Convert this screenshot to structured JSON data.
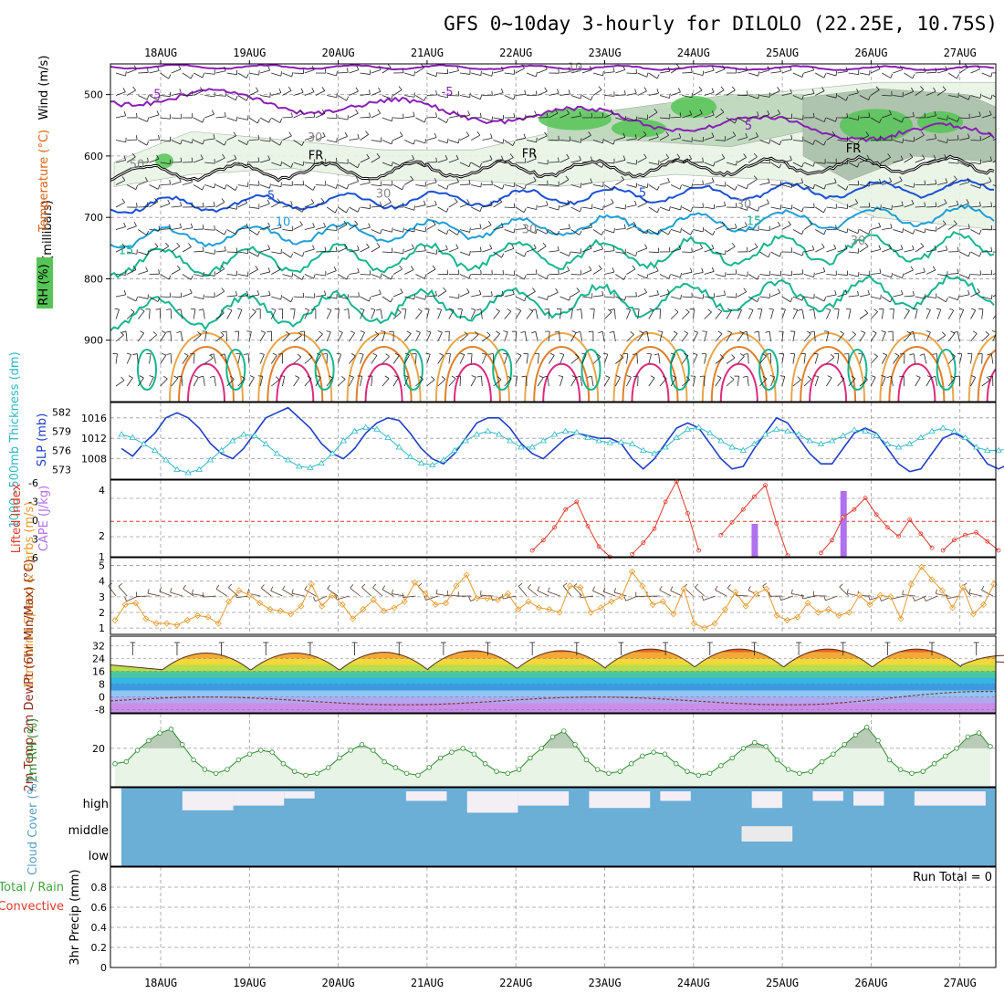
{
  "chart_data": {
    "title": "GFS 0~10day 3-hourly for DILOLO (22.25E, 10.75S)",
    "date_labels": [
      "18AUG",
      "19AUG",
      "20AUG",
      "21AUG",
      "22AUG",
      "23AUG",
      "24AUG",
      "25AUG",
      "26AUG",
      "27AUG"
    ],
    "panels": [
      {
        "type": "contour",
        "name": "upper_air",
        "ylabel": "(millibars)",
        "yticks": [
          500,
          600,
          700,
          800,
          900
        ],
        "ylim": [
          1000,
          450
        ],
        "legend": [
          "Wind (m/s)",
          "Temperature (°C)",
          "RH (%)"
        ],
        "contour_labels": [
          "-5",
          "-5",
          "5",
          "5",
          "5",
          "10",
          "15",
          "15",
          "FR",
          "FR",
          "FR",
          "30",
          "30",
          "30",
          "30",
          "30",
          "50",
          "10"
        ]
      },
      {
        "type": "line",
        "name": "slp_thickness",
        "ylabel_left": "1000~500mb Thickness (dm)",
        "ylabel_right": "SLP (mb)",
        "ticks_thickness": [
          573,
          576,
          579,
          582
        ],
        "ticks_slp": [
          1008,
          1012,
          1016
        ],
        "series": [
          {
            "name": "SLP (mb)",
            "color": "#1f3fc8",
            "values": [
              1010,
              1008.5,
              1011,
              1013,
              1016,
              1017,
              1016,
              1014,
              1011,
              1009,
              1008,
              1010,
              1013,
              1016,
              1017,
              1018,
              1016,
              1014,
              1011,
              1009,
              1008,
              1010,
              1013,
              1015,
              1016,
              1015.5,
              1013,
              1010,
              1008,
              1007,
              1009,
              1012,
              1015,
              1016,
              1016,
              1014,
              1011,
              1009,
              1008,
              1010,
              1012,
              1013,
              1012.5,
              1012,
              1012,
              1011,
              1008,
              1006,
              1008,
              1011,
              1014,
              1015,
              1014,
              1011,
              1008,
              1006,
              1006.5,
              1010,
              1013,
              1016,
              1015,
              1012,
              1009,
              1007,
              1007,
              1010,
              1013,
              1014,
              1013,
              1010,
              1007,
              1005.5,
              1006,
              1009,
              1012,
              1013,
              1012,
              1010,
              1007,
              1006,
              1007,
              1010,
              1012,
              1012,
              1011,
              1009,
              1007,
              1007,
              1009,
              1011,
              1013,
              1012,
              1010,
              1008,
              1007,
              1009,
              1011,
              1013,
              1015
            ]
          },
          {
            "name": "1000~500mb Thickness (dm)",
            "color": "#2fb8c6",
            "values": [
              578.5,
              578,
              577,
              576,
              574.5,
              573,
              572.5,
              573,
              574.5,
              576,
              577.5,
              578.5,
              578.3,
              577,
              575.5,
              574.5,
              573.5,
              573.3,
              574,
              575.5,
              577.5,
              579,
              579.6,
              579.3,
              578,
              576.5,
              575,
              574,
              573.7,
              574.5,
              576,
              577.5,
              578.5,
              579,
              578.5,
              577.5,
              576.5,
              576.5,
              577.5,
              578.5,
              579,
              578.8,
              578,
              577.5,
              577.2,
              577.3,
              577,
              576,
              575.5,
              576.5,
              578,
              579.3,
              579.6,
              578.7,
              577.5,
              576.5,
              576,
              577,
              578.5,
              579.3,
              579,
              578.5,
              577.5,
              577,
              577.5,
              578.3,
              579.2,
              579,
              578.3,
              577,
              576.5,
              577,
              578,
              579,
              579.5,
              579,
              578,
              576.5,
              576,
              576,
              576.3,
              577.5,
              579,
              580.5,
              581.5,
              582,
              581.5,
              580,
              578.5,
              578,
              578.5,
              580,
              581.2,
              581.5,
              580.5,
              579.5,
              578.5,
              577.5,
              577,
              578
            ]
          }
        ]
      },
      {
        "type": "bar+line",
        "name": "stability",
        "ylabel_left": "Lifted Index",
        "ylabel_right": "CAPE (J/kg)",
        "ticks_li": [
          "-6",
          "-3",
          "0",
          "3",
          "6"
        ],
        "ticks_cape": [
          "4",
          "2",
          "1"
        ],
        "cape_bars": [
          {
            "step": 58,
            "value": 2
          },
          {
            "step": 66,
            "value": 4
          }
        ],
        "li_segments": [
          {
            "start": 38,
            "values": [
              5.5,
              4.7,
              3.7,
              2.3,
              1.7,
              3.6,
              5.2,
              6
            ]
          },
          {
            "start": 47,
            "values": [
              5.8,
              4.9,
              3.8,
              1.7,
              0.1,
              2.6,
              5.5
            ]
          },
          {
            "start": 55,
            "values": [
              4.3,
              3.3,
              2.3,
              1.3,
              0.4,
              3.4,
              5.9
            ]
          },
          {
            "start": 64,
            "values": [
              5.7,
              4.7,
              2.9,
              2.3,
              1.4,
              2.7,
              3.7,
              4.4,
              3.1,
              4.2,
              5.3
            ]
          },
          {
            "start": 75,
            "values": [
              5.5,
              4.7,
              4.3,
              4.1,
              4.8,
              5.5
            ]
          }
        ]
      },
      {
        "type": "line",
        "name": "wind10m",
        "ylabel": "10m Wind Speed & Barbs (m/s)",
        "yticks": [
          1,
          2,
          3,
          4,
          5
        ],
        "series": [
          {
            "name": "10m Wind Speed",
            "color": "#e79a2e",
            "values": [
              1.5,
              2.5,
              2.6,
              1.6,
              1.3,
              1.3,
              1.2,
              1.5,
              1.8,
              1.7,
              1.3,
              2.7,
              3.4,
              3.1,
              2.6,
              2.2,
              2.1,
              1.9,
              2.4,
              3.8,
              2.4,
              3.1,
              2.5,
              1.6,
              2.2,
              2.8,
              2.1,
              2.3,
              2.7,
              3.9,
              3.2,
              2.5,
              2.6,
              3.7,
              4.4,
              2.9,
              2.9,
              2.8,
              3.2,
              2.2,
              2.7,
              2.3,
              2.2,
              2.0,
              3.7,
              3.6,
              2.0,
              2.3,
              2.7,
              3.0,
              4.6,
              3.7,
              2.5,
              2.7,
              1.9,
              3.5,
              1.3,
              1.0,
              1.3,
              2.2,
              3.3,
              2.4,
              3.2,
              3.5,
              1.8,
              1.5,
              1.7,
              2.6,
              2.0,
              2.2,
              1.8,
              2.0,
              3.1,
              2.5,
              3.1,
              3.0,
              1.6,
              3.8,
              4.9,
              4.1,
              3.4,
              2.3,
              3.6,
              1.9,
              2.5,
              3.8
            ]
          }
        ]
      },
      {
        "type": "area+line",
        "name": "temp2m",
        "ylabel": "2m Temp 2m DewPt (6hr Min/Max) (°C)",
        "yticks": [
          -8,
          0,
          8,
          16,
          24,
          32
        ],
        "temp_daily": [
          {
            "min": 17,
            "max": 31
          },
          {
            "min": 17,
            "max": 31
          },
          {
            "min": 17,
            "max": 32
          },
          {
            "min": 18,
            "max": 33
          },
          {
            "min": 18,
            "max": 33
          },
          {
            "min": 19,
            "max": 34
          },
          {
            "min": 19,
            "max": 34
          },
          {
            "min": 19,
            "max": 34
          },
          {
            "min": 19,
            "max": 34
          },
          {
            "min": 20,
            "max": 25
          }
        ],
        "dewpoint_range": [
          -5,
          2
        ]
      },
      {
        "type": "line",
        "name": "rh2m",
        "ylabel": "2m RH (%)",
        "yticks": [
          20
        ],
        "series": [
          {
            "name": "2m RH",
            "color": "#2e8b2e",
            "values": [
              12,
              13,
              19,
              24,
              28,
              30,
              22,
              14,
              9,
              7,
              9,
              14,
              17,
              19,
              18,
              12,
              8,
              6,
              7,
              10,
              15,
              19,
              22,
              19,
              13,
              10,
              7,
              6,
              10,
              15,
              18,
              20,
              17,
              12,
              8,
              7,
              9,
              15,
              20,
              26,
              29,
              22,
              14,
              9,
              7,
              8,
              12,
              16,
              18,
              17,
              12,
              8,
              6,
              7,
              11,
              15,
              20,
              23,
              21,
              14,
              9,
              7,
              8,
              13,
              17,
              22,
              27,
              31,
              24,
              14,
              9,
              7,
              8,
              12,
              16,
              20,
              26,
              28,
              21
            ]
          }
        ]
      },
      {
        "type": "bar",
        "name": "cloud_cover",
        "ylabel": "Cloud Cover (%)",
        "levels": [
          "high",
          "middle",
          "low"
        ],
        "high_blocks": [
          {
            "from": 6,
            "to": 11,
            "v": 0.8
          },
          {
            "from": 11,
            "to": 16,
            "v": 0.6
          },
          {
            "from": 16,
            "to": 19,
            "v": 0.3
          },
          {
            "from": 28,
            "to": 32,
            "v": 0.4
          },
          {
            "from": 34,
            "to": 39,
            "v": 0.9
          },
          {
            "from": 39,
            "to": 44,
            "v": 0.6
          },
          {
            "from": 46,
            "to": 52,
            "v": 0.7
          },
          {
            "from": 53,
            "to": 56,
            "v": 0.4
          },
          {
            "from": 62,
            "to": 65,
            "v": 0.7
          },
          {
            "from": 68,
            "to": 71,
            "v": 0.4
          },
          {
            "from": 72,
            "to": 75,
            "v": 0.6
          },
          {
            "from": 78,
            "to": 85,
            "v": 0.6
          }
        ],
        "middle_blocks": [
          {
            "from": 61,
            "to": 66,
            "v": 0.6
          }
        ]
      },
      {
        "type": "bar",
        "name": "precip",
        "ylabel": "3hr Precip (mm)",
        "legend": [
          "Total / Rain",
          "Convective"
        ],
        "yticks": [
          "0",
          "0.2",
          "0.4",
          "0.6",
          "0.8"
        ],
        "run_total": "Run Total = 0",
        "values": []
      }
    ]
  }
}
